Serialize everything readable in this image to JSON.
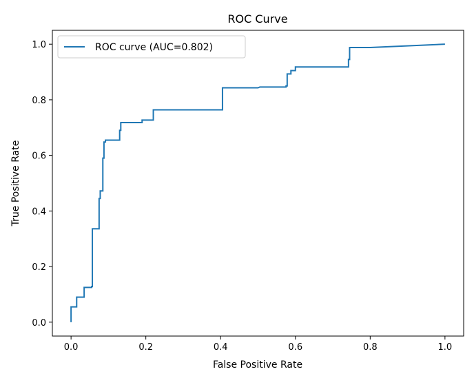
{
  "chart_data": {
    "type": "line",
    "title": "ROC Curve",
    "xlabel": "False Positive Rate",
    "ylabel": "True Positive Rate",
    "xlim": [
      -0.05,
      1.05
    ],
    "ylim": [
      -0.05,
      1.05
    ],
    "xticks": [
      "0.0",
      "0.2",
      "0.4",
      "0.6",
      "0.8",
      "1.0"
    ],
    "yticks": [
      "0.0",
      "0.2",
      "0.4",
      "0.6",
      "0.8",
      "1.0"
    ],
    "grid": false,
    "legend_position": "upper-left",
    "series": [
      {
        "name": "ROC curve (AUC=0.802)",
        "color": "#1f77b4",
        "x": [
          0.0,
          0.0,
          0.0,
          0.015,
          0.015,
          0.035,
          0.035,
          0.055,
          0.055,
          0.057,
          0.057,
          0.075,
          0.075,
          0.078,
          0.078,
          0.085,
          0.085,
          0.088,
          0.088,
          0.092,
          0.092,
          0.13,
          0.13,
          0.133,
          0.133,
          0.19,
          0.19,
          0.22,
          0.22,
          0.405,
          0.405,
          0.44,
          0.5,
          0.505,
          0.575,
          0.575,
          0.578,
          0.578,
          0.588,
          0.588,
          0.6,
          0.6,
          0.742,
          0.742,
          0.745,
          0.745,
          0.8,
          1.0
        ],
        "y": [
          0.0,
          0.055,
          0.055,
          0.055,
          0.09,
          0.09,
          0.125,
          0.125,
          0.128,
          0.128,
          0.336,
          0.336,
          0.445,
          0.445,
          0.472,
          0.472,
          0.59,
          0.59,
          0.648,
          0.648,
          0.655,
          0.655,
          0.69,
          0.69,
          0.718,
          0.718,
          0.727,
          0.727,
          0.764,
          0.764,
          0.843,
          0.843,
          0.843,
          0.846,
          0.846,
          0.85,
          0.85,
          0.893,
          0.893,
          0.905,
          0.905,
          0.918,
          0.918,
          0.945,
          0.945,
          0.988,
          0.988,
          1.0
        ]
      }
    ]
  }
}
